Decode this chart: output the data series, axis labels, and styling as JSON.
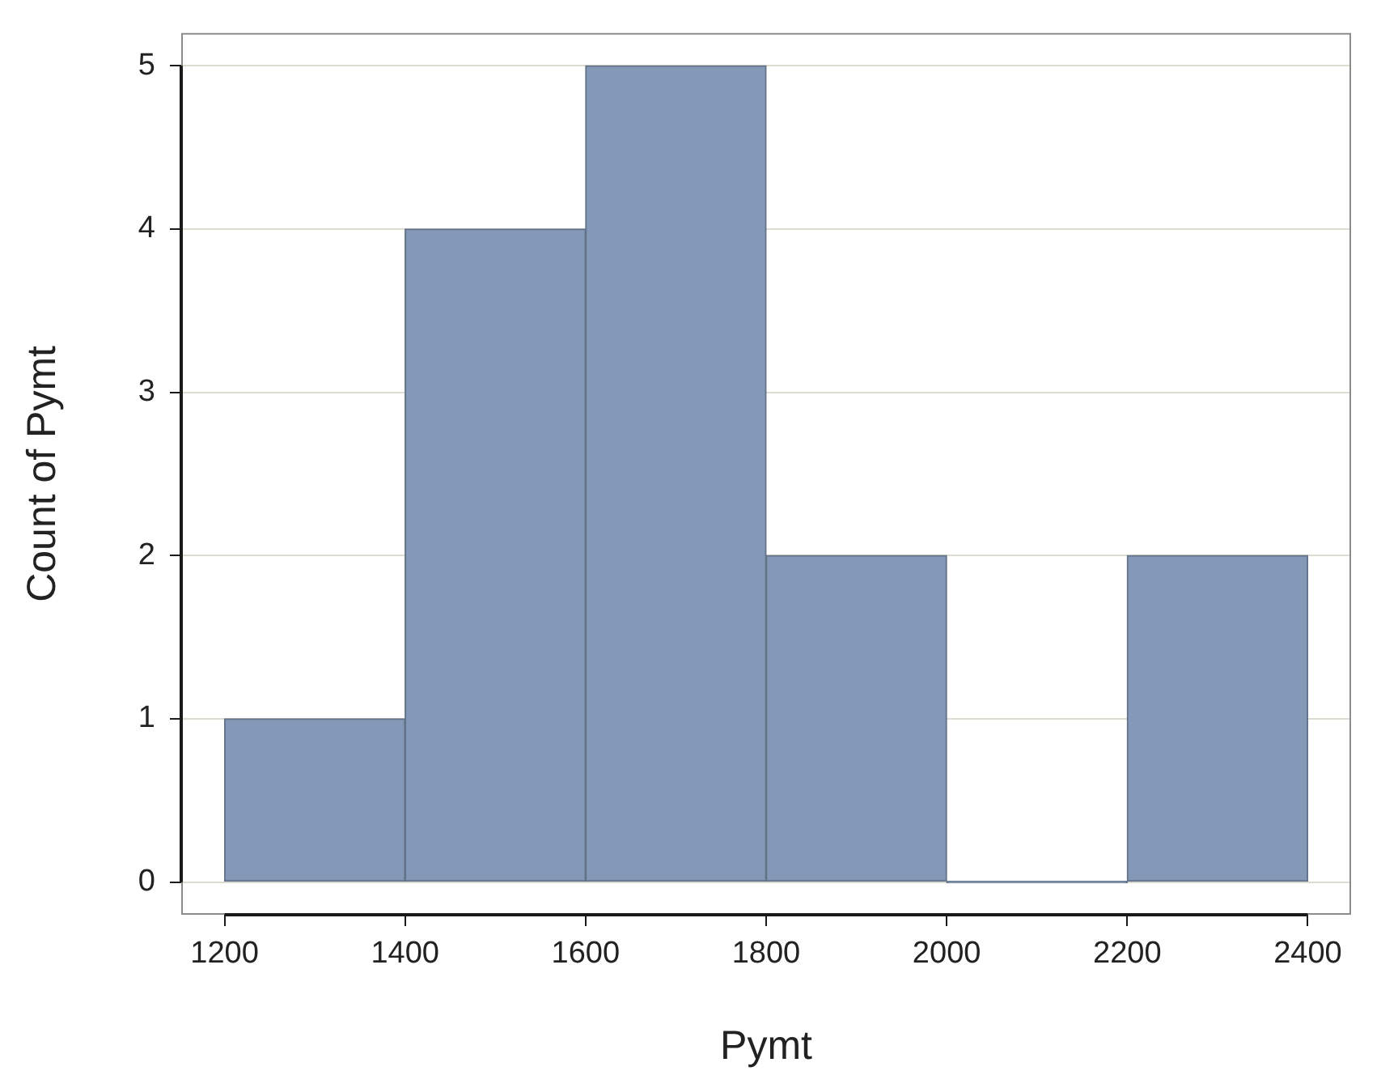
{
  "chart_data": {
    "type": "histogram",
    "xlabel": "Pymt",
    "ylabel": "Count of Pymt",
    "bins": [
      1200,
      1400,
      1600,
      1800,
      2000,
      2200,
      2400
    ],
    "values": [
      1,
      4,
      5,
      2,
      0,
      2
    ],
    "color": "#8499b7",
    "xlim": [
      1152,
      2448
    ],
    "ylim": [
      -0.2,
      5.2
    ],
    "xticks": [
      1200,
      1400,
      1600,
      1800,
      2000,
      2200,
      2400
    ],
    "yticks": [
      0,
      1,
      2,
      3,
      4,
      5
    ],
    "grid": "y"
  }
}
